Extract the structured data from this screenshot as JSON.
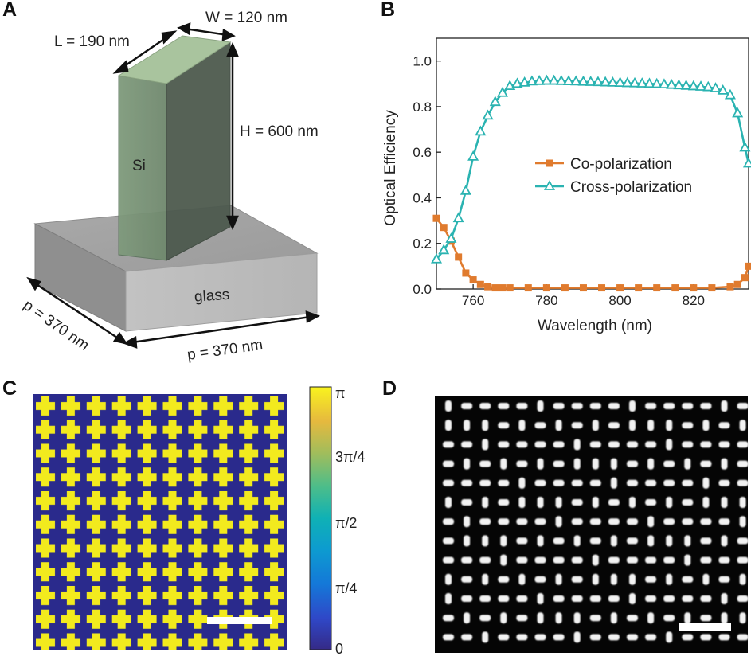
{
  "panels": {
    "a": {
      "letter": "A",
      "dim_L": "L = 190 nm",
      "dim_W": "W = 120 nm",
      "dim_H": "H = 600 nm",
      "dim_p_left": "p = 370 nm",
      "dim_p_bottom": "p = 370 nm",
      "material_pillar": "Si",
      "material_substrate": "glass"
    },
    "b": {
      "letter": "B"
    },
    "c": {
      "letter": "C",
      "colorbar_ticks": [
        "π",
        "3π/4",
        "π/2",
        "π/4",
        "0"
      ]
    },
    "d": {
      "letter": "D"
    }
  },
  "chart_data": {
    "type": "line",
    "xlabel": "Wavelength (nm)",
    "ylabel": "Optical Efficiency",
    "xlim": [
      750,
      835
    ],
    "ylim": [
      0,
      1.1
    ],
    "xticks": [
      760,
      780,
      800,
      820
    ],
    "yticks": [
      0.0,
      0.2,
      0.4,
      0.6,
      0.8,
      1.0
    ],
    "ytick_labels": [
      "0.0",
      "0.2",
      "0.4",
      "0.6",
      "0.8",
      "1.0"
    ],
    "legend_placement": "center-right",
    "series": [
      {
        "name": "Co-polarization",
        "color": "#e07b2e",
        "marker": "square",
        "x": [
          750,
          752,
          754,
          756,
          758,
          760,
          762,
          764,
          766,
          768,
          770,
          775,
          780,
          785,
          790,
          795,
          800,
          805,
          810,
          815,
          820,
          825,
          830,
          832,
          834,
          835
        ],
        "y": [
          0.31,
          0.27,
          0.21,
          0.14,
          0.07,
          0.04,
          0.02,
          0.01,
          0.005,
          0.005,
          0.005,
          0.005,
          0.005,
          0.005,
          0.005,
          0.005,
          0.005,
          0.005,
          0.005,
          0.005,
          0.005,
          0.005,
          0.01,
          0.02,
          0.05,
          0.1
        ]
      },
      {
        "name": "Cross-polarization",
        "color": "#2ab3b1",
        "marker": "triangle",
        "x": [
          750,
          752,
          754,
          756,
          758,
          760,
          762,
          764,
          766,
          768,
          770,
          772,
          774,
          776,
          778,
          780,
          782,
          784,
          786,
          788,
          790,
          792,
          794,
          796,
          798,
          800,
          802,
          804,
          806,
          808,
          810,
          812,
          814,
          816,
          818,
          820,
          822,
          824,
          826,
          828,
          830,
          832,
          834,
          835
        ],
        "y": [
          0.13,
          0.17,
          0.22,
          0.31,
          0.43,
          0.58,
          0.69,
          0.76,
          0.82,
          0.86,
          0.89,
          0.9,
          0.905,
          0.91,
          0.912,
          0.913,
          0.913,
          0.912,
          0.911,
          0.91,
          0.909,
          0.908,
          0.907,
          0.906,
          0.905,
          0.904,
          0.903,
          0.902,
          0.901,
          0.9,
          0.899,
          0.897,
          0.895,
          0.893,
          0.891,
          0.889,
          0.887,
          0.885,
          0.88,
          0.87,
          0.85,
          0.77,
          0.62,
          0.55
        ]
      }
    ]
  }
}
